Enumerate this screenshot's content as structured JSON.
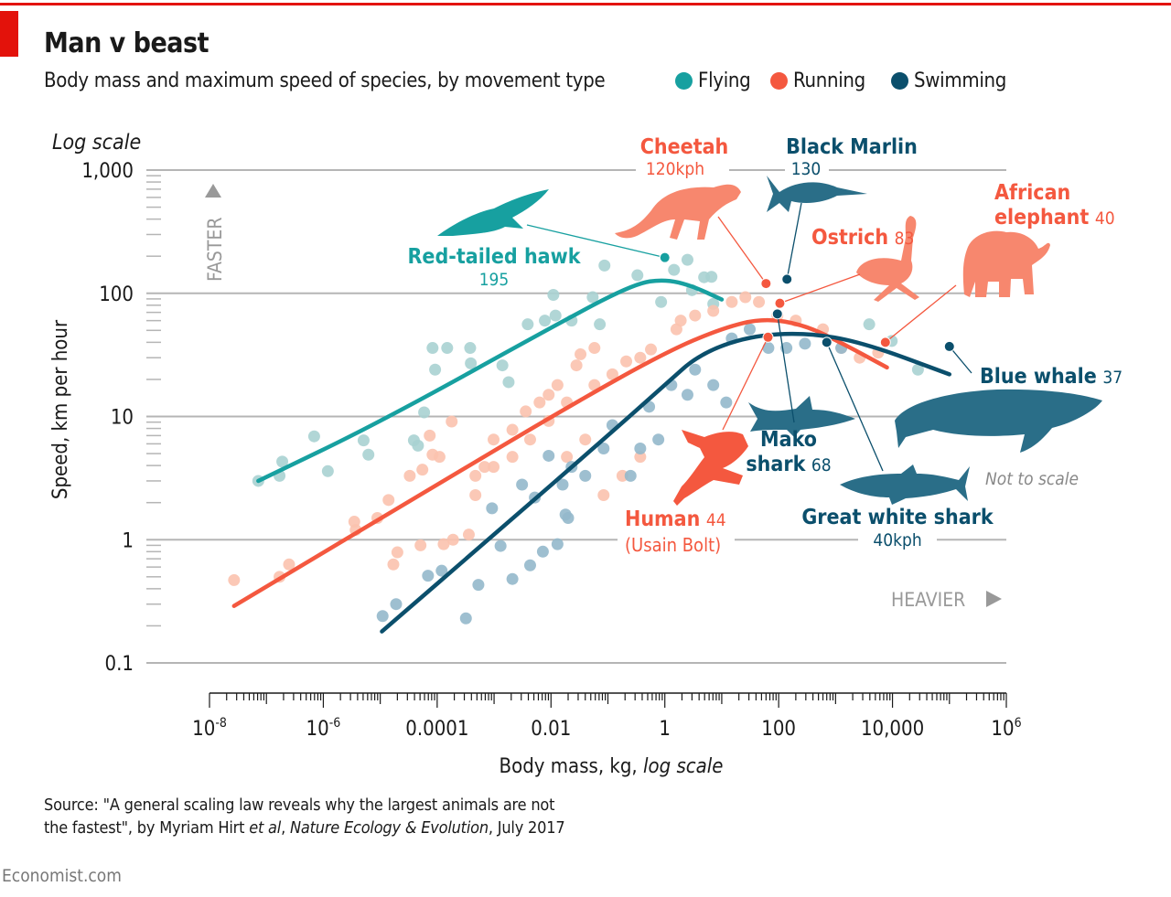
{
  "title": "Man v beast",
  "subtitle": "Body mass and maximum speed of species, by movement type",
  "legend": [
    {
      "label": "Flying",
      "color": "#17a0a0"
    },
    {
      "label": "Running",
      "color": "#f4583f"
    },
    {
      "label": "Swimming",
      "color": "#0b4f6c"
    }
  ],
  "source_line1": "Source: \"A general scaling law reveals why the largest animals are not",
  "source_line2_a": "the fastest\", by Myriam Hirt ",
  "source_line2_b": "et al",
  "source_line2_c": ", ",
  "source_line2_d": "Nature Ecology & Evolution",
  "source_line2_e": ", July 2017",
  "footer": "Economist.com",
  "chart_data": {
    "type": "scatter",
    "title": "Man v beast",
    "subtitle": "Body mass and maximum speed of species, by movement type",
    "xlabel": "Body mass, kg,",
    "xlabel_italic": "log scale",
    "ylabel": "Speed, km per hour",
    "ylabel_note": "Log scale",
    "x_scale": "log",
    "y_scale": "log",
    "xlim": [
      1e-08,
      1000000.0
    ],
    "ylim": [
      0.1,
      1000
    ],
    "x_ticks": [
      {
        "value": 1e-08,
        "base": "10",
        "exp": "-8",
        "label": ""
      },
      {
        "value": 1e-06,
        "base": "10",
        "exp": "-6",
        "label": ""
      },
      {
        "value": 0.0001,
        "label": "0.0001"
      },
      {
        "value": 0.01,
        "label": "0.01"
      },
      {
        "value": 1,
        "label": "1"
      },
      {
        "value": 100,
        "label": "100"
      },
      {
        "value": 10000,
        "label": "10,000"
      },
      {
        "value": 1000000.0,
        "base": "10",
        "exp": "6",
        "label": ""
      }
    ],
    "y_ticks": [
      {
        "value": 1000,
        "label": "1,000"
      },
      {
        "value": 100,
        "label": "100"
      },
      {
        "value": 10,
        "label": "10"
      },
      {
        "value": 1,
        "label": "1"
      },
      {
        "value": 0.1,
        "label": "0.1"
      }
    ],
    "grid": "horizontal",
    "legend_placement": "top",
    "faster_label": "FASTER",
    "heavier_label": "HEAVIER",
    "not_to_scale": "Not to scale",
    "series": [
      {
        "name": "Flying",
        "color": "#17a0a0",
        "point_color": "#a8d2d2",
        "points": [
          [
            7.2e-08,
            3.0
          ],
          [
            1.7e-07,
            3.3
          ],
          [
            1.9e-07,
            4.3
          ],
          [
            6.9e-07,
            6.9
          ],
          [
            1.2e-06,
            3.6
          ],
          [
            5.1e-06,
            6.4
          ],
          [
            6.2e-06,
            4.9
          ],
          [
            3.9e-05,
            6.4
          ],
          [
            4.6e-05,
            5.8
          ],
          [
            5.9e-05,
            10.8
          ],
          [
            8.3e-05,
            36
          ],
          [
            9.2e-05,
            24
          ],
          [
            0.00015,
            36
          ],
          [
            0.00038,
            36
          ],
          [
            0.00039,
            27
          ],
          [
            0.0014,
            26
          ],
          [
            0.0018,
            19
          ],
          [
            0.0039,
            56
          ],
          [
            0.0078,
            60
          ],
          [
            0.011,
            97
          ],
          [
            0.012,
            66
          ],
          [
            0.023,
            60
          ],
          [
            0.054,
            93
          ],
          [
            0.072,
            56
          ],
          [
            0.087,
            168
          ],
          [
            0.33,
            140
          ],
          [
            0.86,
            85
          ],
          [
            1.45,
            155
          ],
          [
            2.5,
            187
          ],
          [
            3.0,
            106
          ],
          [
            4.9,
            135
          ],
          [
            6.6,
            136
          ],
          [
            7.1,
            82
          ],
          [
            3900,
            56
          ],
          [
            9700,
            41
          ],
          [
            28000,
            24
          ]
        ],
        "fit": [
          [
            7.2e-08,
            3.0
          ],
          [
            1e-05,
            9
          ],
          [
            0.02,
            63
          ],
          [
            0.3,
            120
          ],
          [
            1,
            130
          ],
          [
            3,
            115
          ],
          [
            10,
            89
          ]
        ]
      },
      {
        "name": "Running",
        "color": "#f4583f",
        "point_color": "#fbc2ae",
        "points": [
          [
            2.7e-08,
            0.47
          ],
          [
            1.7e-07,
            0.5
          ],
          [
            2.5e-07,
            0.63
          ],
          [
            3.5e-06,
            1.4
          ],
          [
            3.7e-06,
            1.2
          ],
          [
            8.9e-06,
            1.5
          ],
          [
            1.4e-05,
            2.1
          ],
          [
            1.7e-05,
            0.63
          ],
          [
            2e-05,
            0.79
          ],
          [
            3.3e-05,
            3.3
          ],
          [
            5.1e-05,
            0.9
          ],
          [
            5.5e-05,
            3.7
          ],
          [
            7.4e-05,
            7.0
          ],
          [
            8.3e-05,
            4.9
          ],
          [
            0.00011,
            4.7
          ],
          [
            0.00013,
            0.92
          ],
          [
            0.00018,
            9.1
          ],
          [
            0.00019,
            1.0
          ],
          [
            0.00036,
            1.1
          ],
          [
            0.00047,
            2.3
          ],
          [
            0.00068,
            3.9
          ],
          [
            0.00098,
            6.5
          ],
          [
            0.0021,
            7.8
          ],
          [
            0.0036,
            11
          ],
          [
            0.0091,
            15
          ],
          [
            0.019,
            13
          ],
          [
            0.033,
            32
          ],
          [
            0.058,
            18
          ],
          [
            0.12,
            22
          ],
          [
            0.21,
            28
          ],
          [
            0.37,
            30
          ],
          [
            0.57,
            35
          ],
          [
            1.6,
            51
          ],
          [
            1.9,
            60
          ],
          [
            3.4,
            66
          ],
          [
            7.1,
            72
          ],
          [
            15,
            85
          ],
          [
            26,
            93
          ],
          [
            45,
            85
          ],
          [
            95,
            66
          ],
          [
            200,
            60
          ],
          [
            600,
            51
          ],
          [
            1260,
            36
          ],
          [
            2650,
            30
          ],
          [
            5600,
            33
          ],
          [
            0.37,
            4.7
          ],
          [
            0.18,
            3.3
          ],
          [
            0.084,
            2.3
          ],
          [
            0.04,
            6.5
          ],
          [
            0.019,
            4.7
          ],
          [
            0.0021,
            4.7
          ],
          [
            0.0043,
            6.5
          ],
          [
            0.0091,
            9.2
          ],
          [
            0.0063,
            13
          ],
          [
            0.013,
            18
          ],
          [
            0.028,
            26
          ],
          [
            0.058,
            36
          ],
          [
            0.00098,
            3.9
          ],
          [
            0.00047,
            3.3
          ]
        ],
        "fit": [
          [
            2.7e-08,
            0.29
          ],
          [
            0.0001,
            2.8
          ],
          [
            0.02,
            12
          ],
          [
            1,
            33
          ],
          [
            10,
            52
          ],
          [
            55,
            63
          ],
          [
            300,
            55
          ],
          [
            1500,
            38
          ],
          [
            8000,
            25
          ]
        ]
      },
      {
        "name": "Swimming",
        "color": "#0b4f6c",
        "point_color": "#93b8cb",
        "points": [
          [
            1.1e-05,
            0.24
          ],
          [
            1.9e-05,
            0.3
          ],
          [
            6.9e-05,
            0.51
          ],
          [
            0.00012,
            0.56
          ],
          [
            0.00032,
            0.23
          ],
          [
            0.00053,
            0.43
          ],
          [
            0.0013,
            0.89
          ],
          [
            0.0021,
            0.48
          ],
          [
            0.0043,
            0.62
          ],
          [
            0.0072,
            0.8
          ],
          [
            0.013,
            0.92
          ],
          [
            0.02,
            1.5
          ],
          [
            0.00092,
            1.8
          ],
          [
            0.0031,
            2.8
          ],
          [
            0.0052,
            2.2
          ],
          [
            0.0091,
            4.8
          ],
          [
            0.016,
            2.8
          ],
          [
            0.023,
            3.9
          ],
          [
            0.04,
            3.3
          ],
          [
            0.084,
            5.5
          ],
          [
            0.12,
            8.5
          ],
          [
            0.25,
            3.3
          ],
          [
            0.37,
            5.5
          ],
          [
            0.53,
            12
          ],
          [
            0.77,
            6.5
          ],
          [
            1.3,
            18
          ],
          [
            2.5,
            15
          ],
          [
            3.4,
            24
          ],
          [
            7.1,
            18
          ],
          [
            12,
            13
          ],
          [
            15,
            43
          ],
          [
            31,
            51
          ],
          [
            66,
            36
          ],
          [
            137,
            36
          ],
          [
            290,
            39
          ],
          [
            1260,
            36
          ],
          [
            0.018,
            1.6
          ]
        ],
        "fit": [
          [
            1.07e-05,
            0.18
          ],
          [
            0.001,
            1.1
          ],
          [
            0.1,
            7
          ],
          [
            1,
            18
          ],
          [
            4,
            32
          ],
          [
            30,
            45
          ],
          [
            300,
            48
          ],
          [
            3000,
            40
          ],
          [
            100000.0,
            22
          ]
        ]
      }
    ],
    "annotations": [
      {
        "key": "hawk",
        "name": "Red-tailed hawk",
        "value": "195",
        "series": "Flying",
        "mass": 1,
        "speed": 195
      },
      {
        "key": "cheetah",
        "name": "Cheetah",
        "value": "120kph",
        "series": "Running",
        "mass": 60,
        "speed": 120
      },
      {
        "key": "marlin",
        "name": "Black Marlin",
        "value": "130",
        "series": "Swimming",
        "mass": 140,
        "speed": 130
      },
      {
        "key": "ostrich",
        "name": "Ostrich",
        "value": "83",
        "series": "Running",
        "mass": 105,
        "speed": 83
      },
      {
        "key": "elephant",
        "name": "African elephant",
        "name_line1": "African",
        "name_line2": "elephant",
        "value": "40",
        "series": "Running",
        "mass": 7500,
        "speed": 40
      },
      {
        "key": "whale",
        "name": "Blue whale",
        "value": "37",
        "series": "Swimming",
        "mass": 100000,
        "speed": 37
      },
      {
        "key": "mako",
        "name": "Mako shark",
        "name_line1": "Mako",
        "name_line2": "shark",
        "value": "68",
        "series": "Swimming",
        "mass": 95,
        "speed": 68
      },
      {
        "key": "white",
        "name": "Great white shark",
        "value": "40kph",
        "series": "Swimming",
        "mass": 700,
        "speed": 40
      },
      {
        "key": "human",
        "name": "Human",
        "value": "44",
        "note": "(Usain Bolt)",
        "series": "Running",
        "mass": 65,
        "speed": 44
      }
    ]
  }
}
